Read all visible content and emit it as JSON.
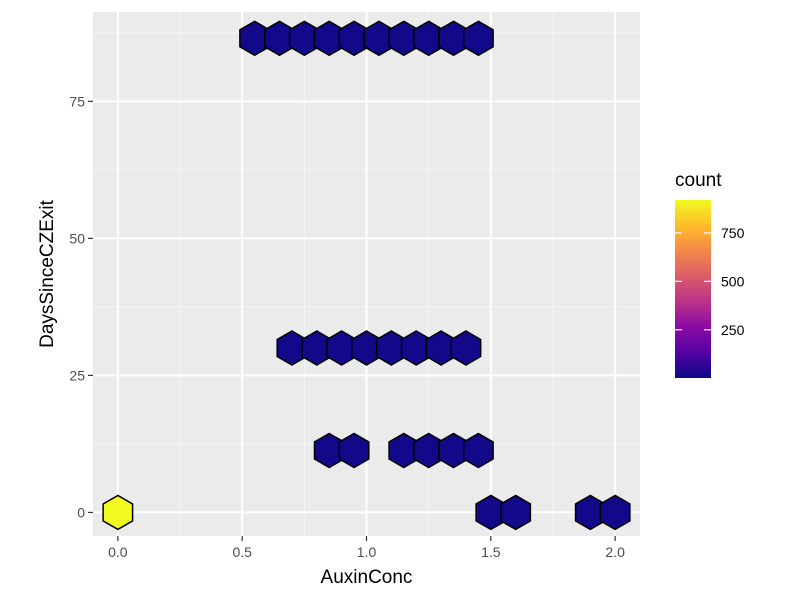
{
  "chart_data": {
    "type": "hexbin",
    "xlabel": "AuxinConc",
    "ylabel": "DaysSinceCZExit",
    "xlim": [
      -0.1,
      2.1
    ],
    "ylim": [
      -4.3,
      91.3
    ],
    "x_ticks": [
      0.0,
      0.5,
      1.0,
      1.5,
      2.0
    ],
    "x_tick_labels": [
      "0.0",
      "0.5",
      "1.0",
      "1.5",
      "2.0"
    ],
    "y_ticks": [
      0,
      25,
      50,
      75
    ],
    "y_tick_labels": [
      "0",
      "25",
      "50",
      "75"
    ],
    "grid": true,
    "legend": {
      "title": "count",
      "placement": "right",
      "ticks": [
        250,
        500,
        750
      ],
      "tick_labels": [
        "250",
        "500",
        "750"
      ],
      "range": [
        1,
        920
      ]
    },
    "palette": [
      "#0d0887",
      "#5402a3",
      "#8b0aa5",
      "#b93289",
      "#db5c68",
      "#f48849",
      "#febc2a",
      "#f0f921"
    ],
    "points": [
      {
        "x": 0.55,
        "y": 86.5,
        "count": 10
      },
      {
        "x": 0.65,
        "y": 86.5,
        "count": 10
      },
      {
        "x": 0.75,
        "y": 86.5,
        "count": 10
      },
      {
        "x": 0.85,
        "y": 86.5,
        "count": 10
      },
      {
        "x": 0.95,
        "y": 86.5,
        "count": 10
      },
      {
        "x": 1.05,
        "y": 86.5,
        "count": 10
      },
      {
        "x": 1.15,
        "y": 86.5,
        "count": 10
      },
      {
        "x": 1.25,
        "y": 86.5,
        "count": 10
      },
      {
        "x": 1.35,
        "y": 86.5,
        "count": 10
      },
      {
        "x": 1.45,
        "y": 86.5,
        "count": 10
      },
      {
        "x": 0.7,
        "y": 30.0,
        "count": 10
      },
      {
        "x": 0.8,
        "y": 30.0,
        "count": 10
      },
      {
        "x": 0.9,
        "y": 30.0,
        "count": 10
      },
      {
        "x": 1.0,
        "y": 30.0,
        "count": 10
      },
      {
        "x": 1.1,
        "y": 30.0,
        "count": 10
      },
      {
        "x": 1.2,
        "y": 30.0,
        "count": 10
      },
      {
        "x": 1.3,
        "y": 30.0,
        "count": 10
      },
      {
        "x": 1.4,
        "y": 30.0,
        "count": 10
      },
      {
        "x": 0.85,
        "y": 11.3,
        "count": 10
      },
      {
        "x": 0.95,
        "y": 11.3,
        "count": 10
      },
      {
        "x": 1.15,
        "y": 11.3,
        "count": 10
      },
      {
        "x": 1.25,
        "y": 11.3,
        "count": 10
      },
      {
        "x": 1.35,
        "y": 11.3,
        "count": 10
      },
      {
        "x": 1.45,
        "y": 11.3,
        "count": 10
      },
      {
        "x": 0.0,
        "y": 0.0,
        "count": 920
      },
      {
        "x": 1.5,
        "y": 0.0,
        "count": 10
      },
      {
        "x": 1.6,
        "y": 0.0,
        "count": 10
      },
      {
        "x": 1.9,
        "y": 0.0,
        "count": 10
      },
      {
        "x": 2.0,
        "y": 0.0,
        "count": 10
      }
    ]
  }
}
